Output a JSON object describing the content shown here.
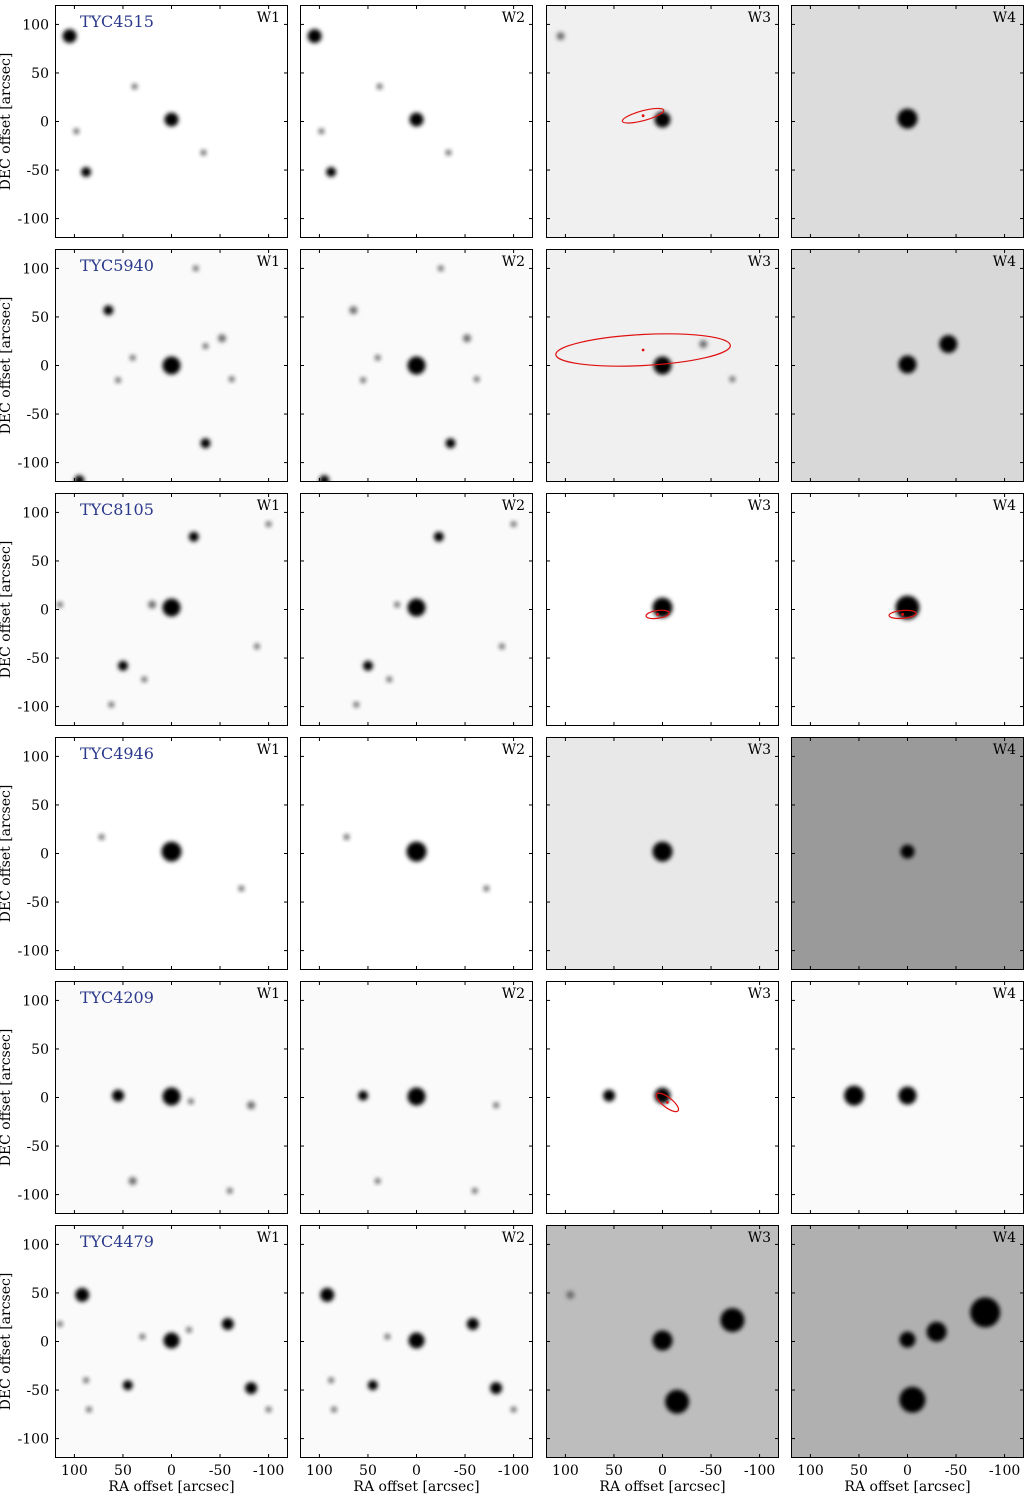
{
  "figure": {
    "ylabel": "DEC offset [arcsec]",
    "xlabel": "RA offset [arcsec]",
    "x_ticks": [
      100,
      50,
      0,
      -50,
      -100
    ],
    "y_ticks": [
      100,
      50,
      0,
      -50,
      -100
    ],
    "x_tick_labels": [
      "100",
      "50",
      "0",
      "-50",
      "-100"
    ],
    "y_tick_labels": [
      "100",
      "50",
      "0",
      "-50",
      "-100"
    ],
    "xlim": [
      120,
      -120
    ],
    "ylim": [
      -120,
      120
    ],
    "bands": [
      "W1",
      "W2",
      "W3",
      "W4"
    ],
    "label_color": "#2b3a8c",
    "ellipse_color": "#e01010"
  },
  "rows": [
    {
      "object": "TYC4515",
      "backgrounds": [
        "#ffffff",
        "#ffffff",
        "#f0f0f0",
        "#dcdcdc"
      ],
      "sources": [
        [
          {
            "x": 0,
            "y": 2,
            "r": 7
          },
          {
            "x": 105,
            "y": 88,
            "r": 7
          },
          {
            "x": 88,
            "y": -52,
            "r": 5
          },
          {
            "x": 98,
            "y": -10,
            "r": 3
          },
          {
            "x": 38,
            "y": 36,
            "r": 3
          },
          {
            "x": -33,
            "y": -32,
            "r": 3
          }
        ],
        [
          {
            "x": 0,
            "y": 2,
            "r": 7
          },
          {
            "x": 105,
            "y": 88,
            "r": 7
          },
          {
            "x": 88,
            "y": -52,
            "r": 5
          },
          {
            "x": 98,
            "y": -10,
            "r": 3
          },
          {
            "x": 38,
            "y": 36,
            "r": 3
          },
          {
            "x": -33,
            "y": -32,
            "r": 3
          }
        ],
        [
          {
            "x": 0,
            "y": 2,
            "r": 8
          },
          {
            "x": 105,
            "y": 88,
            "r": 4
          }
        ],
        [
          {
            "x": 0,
            "y": 3,
            "r": 10
          }
        ]
      ],
      "ellipses": [
        null,
        null,
        {
          "x": 20,
          "y": 6,
          "rx": 22,
          "ry": 5,
          "angle": -15
        },
        null
      ]
    },
    {
      "object": "TYC5940",
      "backgrounds": [
        "#fafafa",
        "#fafafa",
        "#f0f0f0",
        "#d8d8d8"
      ],
      "sources": [
        [
          {
            "x": 0,
            "y": 0,
            "r": 9
          },
          {
            "x": -35,
            "y": -80,
            "r": 5
          },
          {
            "x": 65,
            "y": 57,
            "r": 5
          },
          {
            "x": 95,
            "y": -118,
            "r": 5
          },
          {
            "x": -52,
            "y": 28,
            "r": 4
          },
          {
            "x": 40,
            "y": 8,
            "r": 3
          },
          {
            "x": -62,
            "y": -14,
            "r": 3
          },
          {
            "x": -25,
            "y": 100,
            "r": 3
          },
          {
            "x": 55,
            "y": -15,
            "r": 3
          },
          {
            "x": -35,
            "y": 20,
            "r": 3
          }
        ],
        [
          {
            "x": 0,
            "y": 0,
            "r": 9
          },
          {
            "x": -35,
            "y": -80,
            "r": 5
          },
          {
            "x": 65,
            "y": 57,
            "r": 4
          },
          {
            "x": 95,
            "y": -118,
            "r": 5
          },
          {
            "x": -52,
            "y": 28,
            "r": 4
          },
          {
            "x": 40,
            "y": 8,
            "r": 3
          },
          {
            "x": -62,
            "y": -14,
            "r": 3
          },
          {
            "x": -25,
            "y": 100,
            "r": 3
          },
          {
            "x": 55,
            "y": -15,
            "r": 3
          }
        ],
        [
          {
            "x": 0,
            "y": 0,
            "r": 9
          },
          {
            "x": -42,
            "y": 22,
            "r": 4
          },
          {
            "x": -72,
            "y": -14,
            "r": 3
          }
        ],
        [
          {
            "x": 0,
            "y": 1,
            "r": 9
          },
          {
            "x": -42,
            "y": 22,
            "r": 9
          }
        ]
      ],
      "ellipses": [
        null,
        null,
        {
          "x": 20,
          "y": 16,
          "rx": 90,
          "ry": 16,
          "angle": -3
        },
        null
      ]
    },
    {
      "object": "TYC8105",
      "backgrounds": [
        "#fafafa",
        "#fafafa",
        "#ffffff",
        "#fafafa"
      ],
      "sources": [
        [
          {
            "x": 0,
            "y": 2,
            "r": 9
          },
          {
            "x": -23,
            "y": 75,
            "r": 5
          },
          {
            "x": 50,
            "y": -58,
            "r": 5
          },
          {
            "x": -100,
            "y": 88,
            "r": 3
          },
          {
            "x": 62,
            "y": -98,
            "r": 3
          },
          {
            "x": 28,
            "y": -72,
            "r": 3
          },
          {
            "x": 20,
            "y": 5,
            "r": 4
          },
          {
            "x": -88,
            "y": -38,
            "r": 3
          },
          {
            "x": 115,
            "y": 5,
            "r": 3
          }
        ],
        [
          {
            "x": 0,
            "y": 2,
            "r": 9
          },
          {
            "x": -23,
            "y": 75,
            "r": 5
          },
          {
            "x": 50,
            "y": -58,
            "r": 5
          },
          {
            "x": -100,
            "y": 88,
            "r": 3
          },
          {
            "x": 62,
            "y": -98,
            "r": 3
          },
          {
            "x": 28,
            "y": -72,
            "r": 3
          },
          {
            "x": 20,
            "y": 5,
            "r": 3
          },
          {
            "x": -88,
            "y": -38,
            "r": 3
          }
        ],
        [
          {
            "x": 0,
            "y": 2,
            "r": 10
          }
        ],
        [
          {
            "x": 0,
            "y": 2,
            "r": 12
          }
        ]
      ],
      "ellipses": [
        null,
        null,
        {
          "x": 5,
          "y": -5,
          "rx": 12,
          "ry": 4,
          "angle": -8
        },
        {
          "x": 5,
          "y": -5,
          "rx": 14,
          "ry": 4,
          "angle": -5
        }
      ]
    },
    {
      "object": "TYC4946",
      "backgrounds": [
        "#ffffff",
        "#ffffff",
        "#e8e8e8",
        "#9a9a9a"
      ],
      "sources": [
        [
          {
            "x": 0,
            "y": 2,
            "r": 10
          },
          {
            "x": -72,
            "y": -36,
            "r": 3
          },
          {
            "x": 72,
            "y": 17,
            "r": 3
          }
        ],
        [
          {
            "x": 0,
            "y": 2,
            "r": 10
          },
          {
            "x": -72,
            "y": -36,
            "r": 3
          },
          {
            "x": 72,
            "y": 17,
            "r": 3
          }
        ],
        [
          {
            "x": 0,
            "y": 2,
            "r": 10
          }
        ],
        [
          {
            "x": 0,
            "y": 2,
            "r": 7
          }
        ]
      ],
      "ellipses": [
        null,
        null,
        null,
        null
      ]
    },
    {
      "object": "TYC4209",
      "backgrounds": [
        "#fafafa",
        "#fafafa",
        "#ffffff",
        "#fafafa"
      ],
      "sources": [
        [
          {
            "x": 0,
            "y": 1,
            "r": 9
          },
          {
            "x": 55,
            "y": 2,
            "r": 6
          },
          {
            "x": -82,
            "y": -8,
            "r": 4
          },
          {
            "x": 40,
            "y": -86,
            "r": 4
          },
          {
            "x": -60,
            "y": -96,
            "r": 3
          },
          {
            "x": -20,
            "y": -4,
            "r": 3
          }
        ],
        [
          {
            "x": 0,
            "y": 1,
            "r": 9
          },
          {
            "x": 55,
            "y": 2,
            "r": 5
          },
          {
            "x": -82,
            "y": -8,
            "r": 3
          },
          {
            "x": 40,
            "y": -86,
            "r": 3
          },
          {
            "x": -60,
            "y": -96,
            "r": 3
          }
        ],
        [
          {
            "x": 0,
            "y": 2,
            "r": 8
          },
          {
            "x": 55,
            "y": 2,
            "r": 6
          }
        ],
        [
          {
            "x": 0,
            "y": 2,
            "r": 9
          },
          {
            "x": 55,
            "y": 2,
            "r": 10
          }
        ]
      ],
      "ellipses": [
        null,
        null,
        {
          "x": -5,
          "y": -5,
          "rx": 14,
          "ry": 5,
          "angle": 38
        },
        null
      ]
    },
    {
      "object": "TYC4479",
      "backgrounds": [
        "#fafafa",
        "#fafafa",
        "#bdbdbd",
        "#b0b0b0"
      ],
      "sources": [
        [
          {
            "x": 0,
            "y": 1,
            "r": 8
          },
          {
            "x": 92,
            "y": 48,
            "r": 7
          },
          {
            "x": -58,
            "y": 18,
            "r": 6
          },
          {
            "x": -82,
            "y": -48,
            "r": 6
          },
          {
            "x": 45,
            "y": -45,
            "r": 5
          },
          {
            "x": 85,
            "y": -70,
            "r": 3
          },
          {
            "x": 88,
            "y": -40,
            "r": 3
          },
          {
            "x": 115,
            "y": 18,
            "r": 3
          },
          {
            "x": -100,
            "y": -70,
            "r": 3
          },
          {
            "x": -18,
            "y": 12,
            "r": 3
          },
          {
            "x": 30,
            "y": 5,
            "r": 3
          }
        ],
        [
          {
            "x": 0,
            "y": 1,
            "r": 8
          },
          {
            "x": 92,
            "y": 48,
            "r": 7
          },
          {
            "x": -58,
            "y": 18,
            "r": 6
          },
          {
            "x": -82,
            "y": -48,
            "r": 6
          },
          {
            "x": 45,
            "y": -45,
            "r": 5
          },
          {
            "x": 85,
            "y": -70,
            "r": 3
          },
          {
            "x": 88,
            "y": -40,
            "r": 3
          },
          {
            "x": -100,
            "y": -70,
            "r": 3
          },
          {
            "x": 30,
            "y": 5,
            "r": 3
          }
        ],
        [
          {
            "x": 0,
            "y": 1,
            "r": 10
          },
          {
            "x": -72,
            "y": 22,
            "r": 12
          },
          {
            "x": -15,
            "y": -62,
            "r": 12
          },
          {
            "x": 95,
            "y": 48,
            "r": 4
          }
        ],
        [
          {
            "x": 0,
            "y": 2,
            "r": 8
          },
          {
            "x": -80,
            "y": 30,
            "r": 15
          },
          {
            "x": -5,
            "y": -60,
            "r": 13
          },
          {
            "x": -30,
            "y": 10,
            "r": 10
          }
        ]
      ],
      "ellipses": [
        null,
        null,
        null,
        null
      ]
    }
  ]
}
